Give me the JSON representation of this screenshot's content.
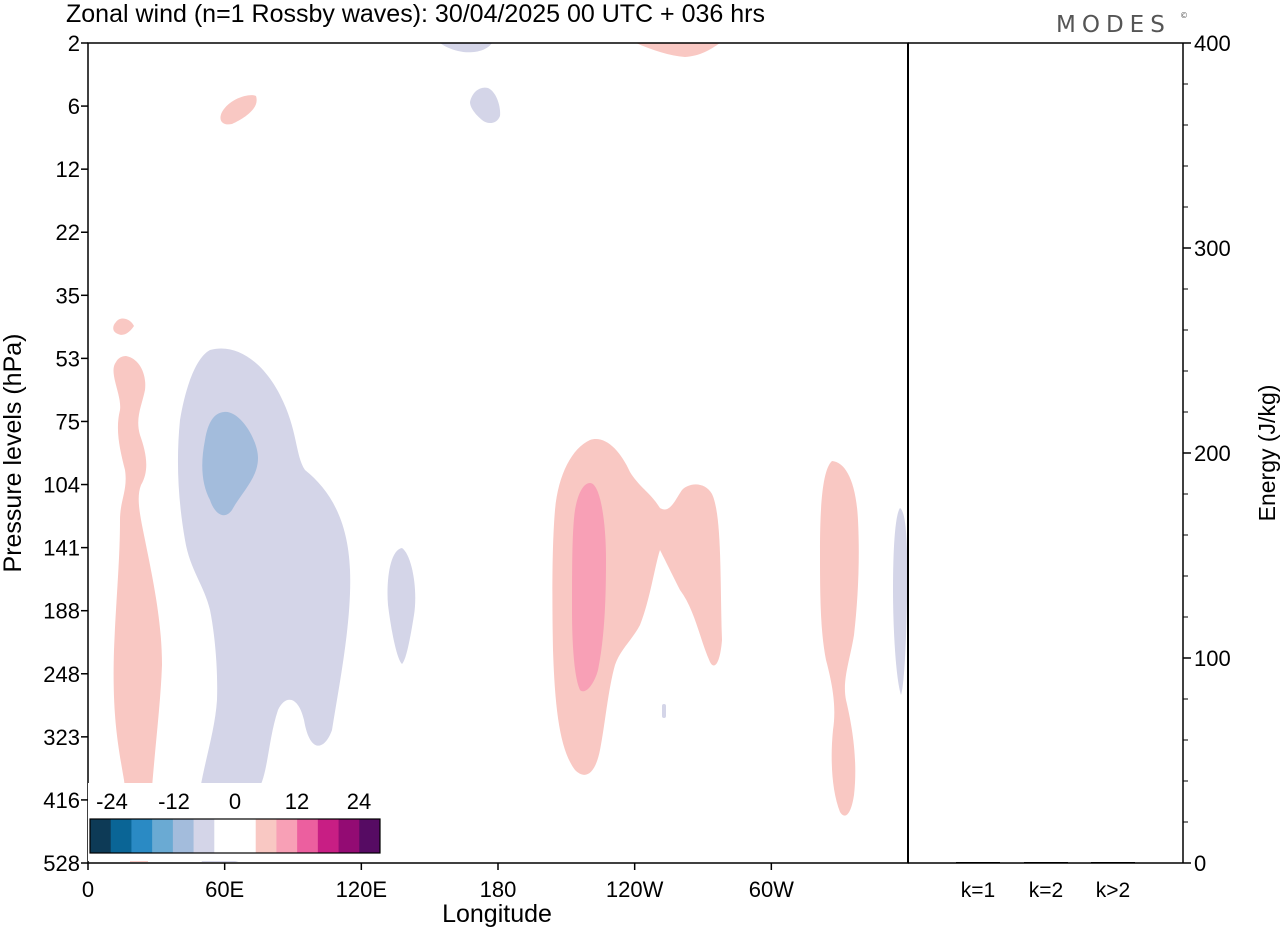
{
  "title": "Zonal wind (n=1 Rossby waves):  30/04/2025  00 UTC  + 036 hrs",
  "brand": "MODES",
  "brand_mark": "©",
  "chart_data": [
    {
      "type": "heatmap",
      "title": "Zonal wind (n=1 Rossby waves):  30/04/2025  00 UTC  + 036 hrs",
      "xlabel": "Longitude",
      "ylabel": "Pressure levels (hPa)",
      "x_ticks": [
        "0",
        "60E",
        "120E",
        "180",
        "120W",
        "60W"
      ],
      "y_ticks": [
        "2",
        "6",
        "12",
        "22",
        "35",
        "53",
        "75",
        "104",
        "141",
        "188",
        "248",
        "323",
        "416",
        "528"
      ],
      "grid": false,
      "colorbar": {
        "placement": "bottom-left",
        "labels": [
          "-24",
          "-12",
          "0",
          "12",
          "24"
        ],
        "colors": [
          "#0d3a56",
          "#0a6596",
          "#2a8ac4",
          "#6aaad3",
          "#a3bcdc",
          "#d4d5e8",
          "#ffffff",
          "#ffffff",
          "#f9c8c3",
          "#f8a0b6",
          "#ec5f9f",
          "#c81e84",
          "#930b73",
          "#560b63"
        ]
      },
      "shaded_regions": [
        {
          "value": "positive-weak",
          "color": "#f9c8c3",
          "lon": [
            10,
            30
          ],
          "pressure_hpa": [
            45,
            528
          ]
        },
        {
          "value": "negative-weak",
          "color": "#d4d5e8",
          "lon": [
            40,
            115
          ],
          "pressure_hpa": [
            53,
            528
          ]
        },
        {
          "value": "negative-moderate",
          "color": "#a3bcdc",
          "lon": [
            50,
            74
          ],
          "pressure_hpa": [
            78,
            120
          ]
        },
        {
          "value": "positive-weak",
          "color": "#f9c8c3",
          "lon": [
            205,
            278
          ],
          "pressure_hpa": [
            85,
            370
          ]
        },
        {
          "value": "positive-moderate",
          "color": "#f8a0b6",
          "lon": [
            212,
            228
          ],
          "pressure_hpa": [
            108,
            255
          ]
        },
        {
          "value": "positive-weak",
          "color": "#f9c8c3",
          "lon": [
            320,
            337
          ],
          "pressure_hpa": [
            100,
            440
          ]
        },
        {
          "value": "negative-weak",
          "color": "#d4d5e8",
          "lon": [
            133,
            143
          ],
          "pressure_hpa": [
            143,
            255
          ]
        }
      ]
    },
    {
      "type": "bar",
      "categories": [
        "k=1",
        "k=2",
        "k>2"
      ],
      "values": [
        0,
        0,
        0
      ],
      "ylabel": "Energy (J/kg)",
      "y_ticks": [
        "0",
        "100",
        "200",
        "300",
        "400"
      ],
      "ylim": [
        0,
        400
      ],
      "grid": false
    }
  ]
}
